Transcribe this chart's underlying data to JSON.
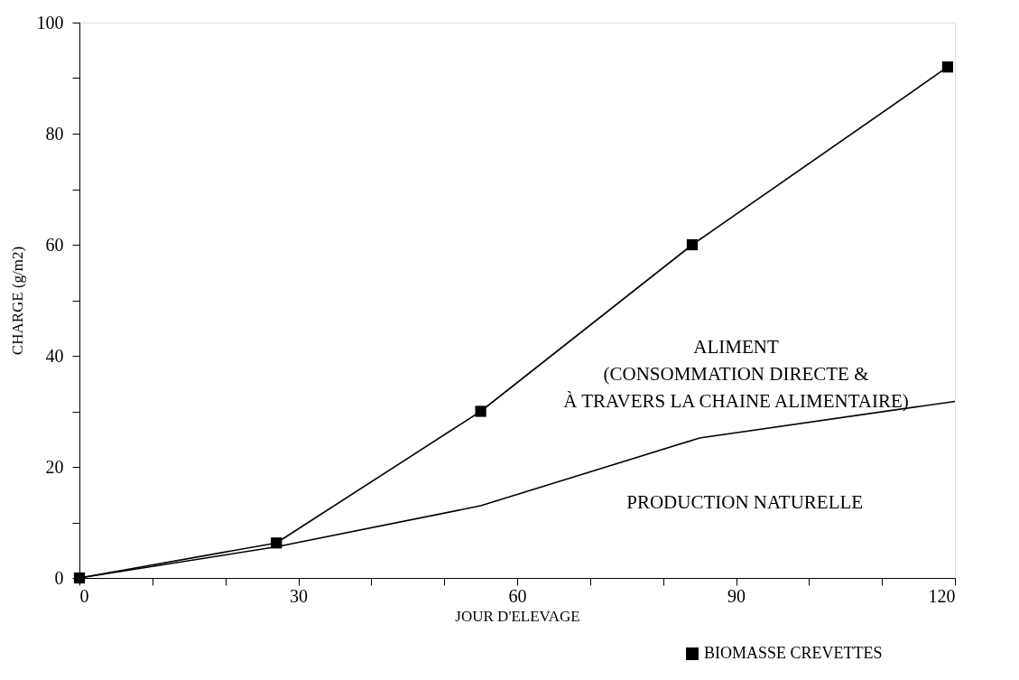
{
  "chart_data": {
    "type": "line",
    "xlabel": "JOUR D'ELEVAGE",
    "ylabel": "CHARGE (g/m2)",
    "xlim": [
      0,
      120
    ],
    "ylim": [
      0,
      100
    ],
    "xticks": [
      0,
      {
        "value": 10,
        "label": null
      },
      {
        "value": 20,
        "label": null
      },
      30,
      {
        "value": 40,
        "label": null
      },
      {
        "value": 50,
        "label": null
      },
      60,
      {
        "value": 70,
        "label": null
      },
      {
        "value": 80,
        "label": null
      },
      90,
      {
        "value": 100,
        "label": null
      },
      {
        "value": 110,
        "label": null
      },
      120
    ],
    "yticks": [
      0,
      {
        "value": 10,
        "label": null
      },
      20,
      {
        "value": 30,
        "label": null
      },
      40,
      {
        "value": 50,
        "label": null
      },
      60,
      {
        "value": 70,
        "label": null
      },
      80,
      {
        "value": 90,
        "label": null
      },
      100
    ],
    "grid": false,
    "legend": "bottom right",
    "series": [
      {
        "name": "BIOMASSE CREVETTES",
        "color": "#000000",
        "marker": "square",
        "x": [
          0,
          27,
          55,
          84,
          119
        ],
        "values": [
          0,
          6.3,
          30,
          60,
          92
        ]
      },
      {
        "color": "#000000",
        "marker": "none",
        "x": [
          0,
          27,
          55,
          85,
          120
        ],
        "values": [
          0,
          5.6,
          13,
          25.2,
          31.8
        ]
      }
    ],
    "annotations": [
      "ALIMENT\n(CONSOMMATION DIRECTE &\nÀ TRAVERS LA CHAINE ALIMENTAIRE)",
      "PRODUCTION NATURELLE"
    ]
  }
}
